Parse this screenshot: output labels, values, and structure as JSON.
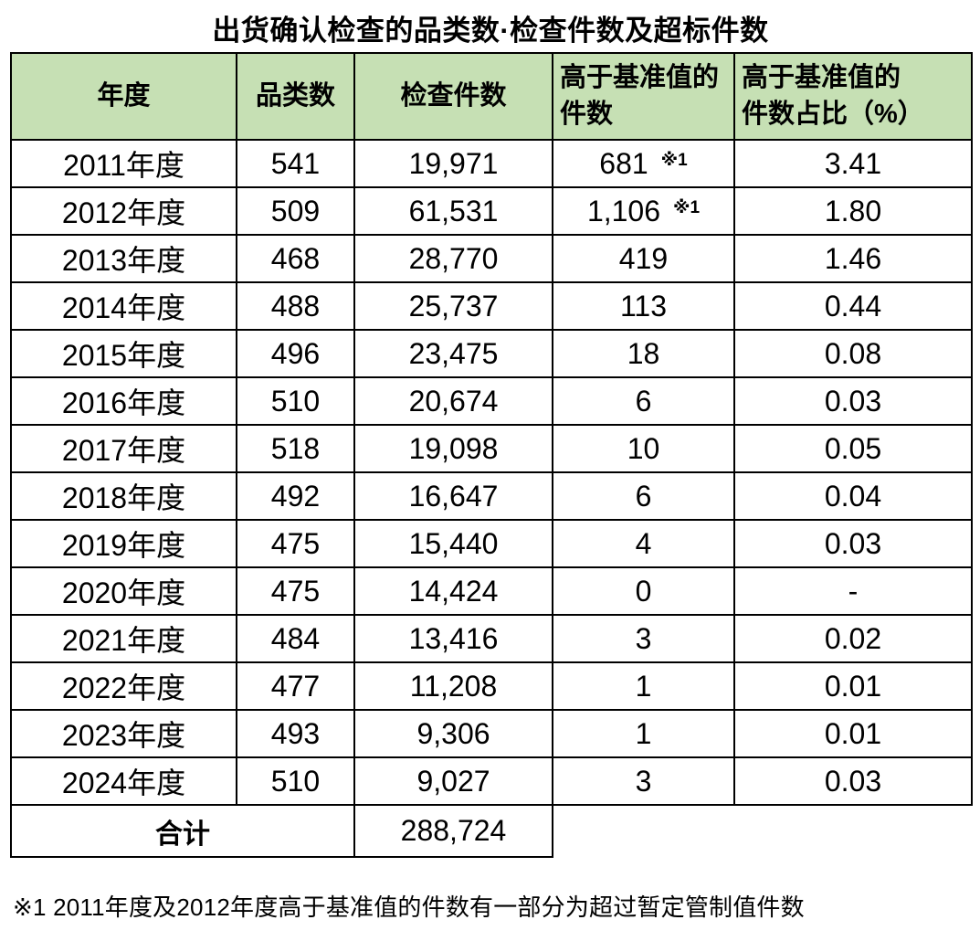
{
  "title": "出货确认检查的品类数·检查件数及超标件数",
  "colors": {
    "header_bg": "#c6e0b4",
    "border": "#000000",
    "text": "#000000",
    "page_bg": "#ffffff"
  },
  "table": {
    "headers": [
      "年度",
      "品类数",
      "检查件数",
      [
        "高于基准值的",
        "件数"
      ],
      [
        "高于基准值的",
        "件数占比（%）"
      ]
    ],
    "rows": [
      {
        "year": "2011年度",
        "categories": "541",
        "inspections": "19,971",
        "exceed": "681",
        "note": "※1",
        "ratio": "3.41"
      },
      {
        "year": "2012年度",
        "categories": "509",
        "inspections": "61,531",
        "exceed": "1,106",
        "note": "※1",
        "ratio": "1.80"
      },
      {
        "year": "2013年度",
        "categories": "468",
        "inspections": "28,770",
        "exceed": "419",
        "note": "",
        "ratio": "1.46"
      },
      {
        "year": "2014年度",
        "categories": "488",
        "inspections": "25,737",
        "exceed": "113",
        "note": "",
        "ratio": "0.44"
      },
      {
        "year": "2015年度",
        "categories": "496",
        "inspections": "23,475",
        "exceed": "18",
        "note": "",
        "ratio": "0.08"
      },
      {
        "year": "2016年度",
        "categories": "510",
        "inspections": "20,674",
        "exceed": "6",
        "note": "",
        "ratio": "0.03"
      },
      {
        "year": "2017年度",
        "categories": "518",
        "inspections": "19,098",
        "exceed": "10",
        "note": "",
        "ratio": "0.05"
      },
      {
        "year": "2018年度",
        "categories": "492",
        "inspections": "16,647",
        "exceed": "6",
        "note": "",
        "ratio": "0.04"
      },
      {
        "year": "2019年度",
        "categories": "475",
        "inspections": "15,440",
        "exceed": "4",
        "note": "",
        "ratio": "0.03"
      },
      {
        "year": "2020年度",
        "categories": "475",
        "inspections": "14,424",
        "exceed": "0",
        "note": "",
        "ratio": "-"
      },
      {
        "year": "2021年度",
        "categories": "484",
        "inspections": "13,416",
        "exceed": "3",
        "note": "",
        "ratio": "0.02"
      },
      {
        "year": "2022年度",
        "categories": "477",
        "inspections": "11,208",
        "exceed": "1",
        "note": "",
        "ratio": "0.01"
      },
      {
        "year": "2023年度",
        "categories": "493",
        "inspections": "9,306",
        "exceed": "1",
        "note": "",
        "ratio": "0.01"
      },
      {
        "year": "2024年度",
        "categories": "510",
        "inspections": "9,027",
        "exceed": "3",
        "note": "",
        "ratio": "0.03"
      }
    ],
    "total": {
      "label": "合计",
      "inspections": "288,724"
    }
  },
  "footnote": "※1 2011年度及2012年度高于基准值的件数有一部分为超过暂定管制值件数"
}
